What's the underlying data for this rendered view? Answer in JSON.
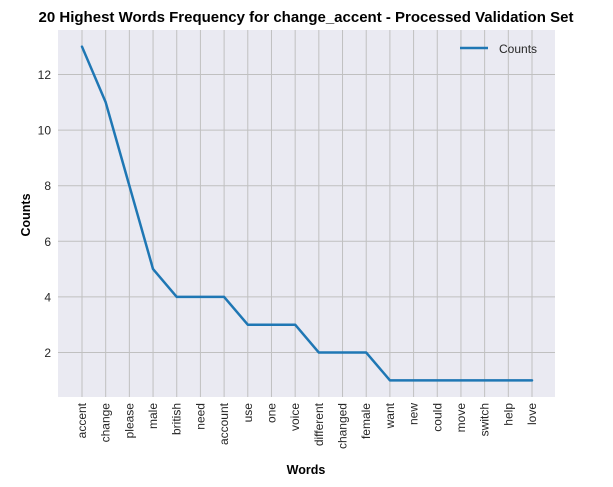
{
  "chart_data": {
    "type": "line",
    "title": "20 Highest Words Frequency for change_accent - Processed Validation Set",
    "xlabel": "Words",
    "ylabel": "Counts",
    "categories": [
      "accent",
      "change",
      "please",
      "male",
      "british",
      "need",
      "account",
      "use",
      "one",
      "voice",
      "different",
      "changed",
      "female",
      "want",
      "new",
      "could",
      "move",
      "switch",
      "help",
      "love"
    ],
    "series": [
      {
        "name": "Counts",
        "values": [
          13,
          11,
          8,
          5,
          4,
          4,
          4,
          3,
          3,
          3,
          2,
          2,
          2,
          1,
          1,
          1,
          1,
          1,
          1,
          1
        ]
      }
    ],
    "yticks": [
      2,
      4,
      6,
      8,
      10,
      12
    ],
    "ylim": [
      0.4,
      13.6
    ],
    "grid": true,
    "legend_position": "top-right",
    "colors": {
      "line": "#1f77b4",
      "plot_background": "#eaeaf2",
      "grid": "#c0c0c0"
    }
  }
}
